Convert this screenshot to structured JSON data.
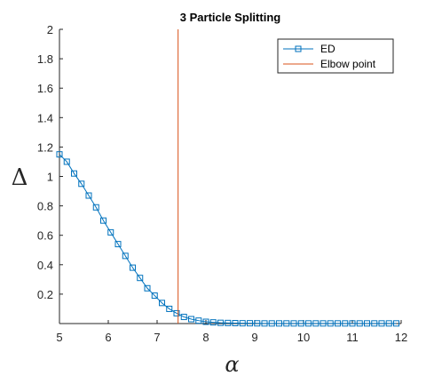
{
  "chart_data": {
    "type": "line",
    "title": "3 Particle Splitting",
    "xlabel": "α",
    "ylabel": "Δ",
    "xlim": [
      5,
      12
    ],
    "ylim": [
      0,
      2
    ],
    "xticks": [
      "5",
      "6",
      "7",
      "8",
      "9",
      "10",
      "11",
      "12"
    ],
    "yticks": [
      "0.2",
      "0.4",
      "0.6",
      "0.8",
      "1",
      "1.2",
      "1.4",
      "1.6",
      "1.8",
      "2"
    ],
    "grid": false,
    "legend_position": "top-right",
    "series": [
      {
        "name": "ED",
        "color": "#0072BD",
        "marker": "square",
        "x": [
          5.0,
          5.15,
          5.3,
          5.45,
          5.6,
          5.75,
          5.9,
          6.05,
          6.2,
          6.35,
          6.5,
          6.65,
          6.8,
          6.95,
          7.1,
          7.25,
          7.4,
          7.55,
          7.7,
          7.85,
          8.0,
          8.15,
          8.3,
          8.45,
          8.6,
          8.75,
          8.9,
          9.05,
          9.2,
          9.35,
          9.5,
          9.65,
          9.8,
          9.95,
          10.1,
          10.25,
          10.4,
          10.55,
          10.7,
          10.85,
          11.0,
          11.15,
          11.3,
          11.45,
          11.6,
          11.75,
          11.9
        ],
        "y": [
          1.15,
          1.1,
          1.02,
          0.95,
          0.87,
          0.79,
          0.7,
          0.62,
          0.54,
          0.46,
          0.38,
          0.31,
          0.24,
          0.19,
          0.14,
          0.1,
          0.07,
          0.045,
          0.03,
          0.02,
          0.012,
          0.008,
          0.005,
          0.004,
          0.003,
          0.002,
          0.002,
          0.0015,
          0.001,
          0.001,
          0.001,
          0.001,
          0.001,
          0.001,
          0.001,
          0.001,
          0.001,
          0.001,
          0.001,
          0.001,
          0.001,
          0.001,
          0.001,
          0.001,
          0.001,
          0.001,
          0.001
        ]
      },
      {
        "name": "Elbow point",
        "color": "#D95319",
        "type": "vline",
        "x": 7.43
      }
    ]
  }
}
